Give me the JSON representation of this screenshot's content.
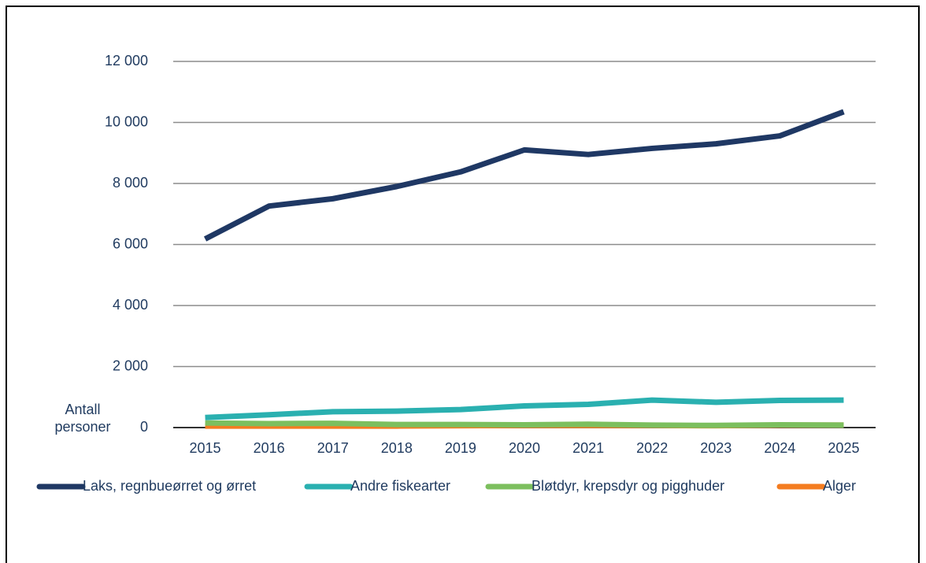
{
  "chart_data": {
    "type": "line",
    "ylabel": "Antall personer",
    "categories": [
      "2015",
      "2016",
      "2017",
      "2018",
      "2019",
      "2020",
      "2021",
      "2022",
      "2023",
      "2024",
      "2025"
    ],
    "series": [
      {
        "name": "Laks, regnbueørret og ørret",
        "color": "#1f3864",
        "values": [
          6180,
          7260,
          7500,
          7900,
          8380,
          9100,
          8950,
          9150,
          9300,
          9560,
          10350
        ]
      },
      {
        "name": "Andre fiskearter",
        "color": "#2ab0b0",
        "values": [
          330,
          420,
          520,
          540,
          590,
          710,
          760,
          900,
          830,
          890,
          900
        ]
      },
      {
        "name": "Bløtdyr, krepsdyr og pigghuder",
        "color": "#7cbf5e",
        "values": [
          150,
          130,
          140,
          100,
          100,
          90,
          110,
          80,
          70,
          90,
          80
        ]
      },
      {
        "name": "Alger",
        "color": "#f47c20",
        "values": [
          50,
          50,
          50,
          50,
          60,
          70,
          70,
          70,
          60,
          80,
          80
        ]
      }
    ],
    "ylim": [
      0,
      12000
    ],
    "yticks": [
      0,
      {
        "value": 2000,
        "label": "2 000"
      },
      {
        "value": 4000,
        "label": "4 000"
      },
      {
        "value": 6000,
        "label": "6 000"
      },
      {
        "value": 8000,
        "label": "8 000"
      },
      {
        "value": 10000,
        "label": "10 000"
      },
      {
        "value": 12000,
        "label": "12 000"
      }
    ],
    "grid": true,
    "legend": "bottom"
  }
}
